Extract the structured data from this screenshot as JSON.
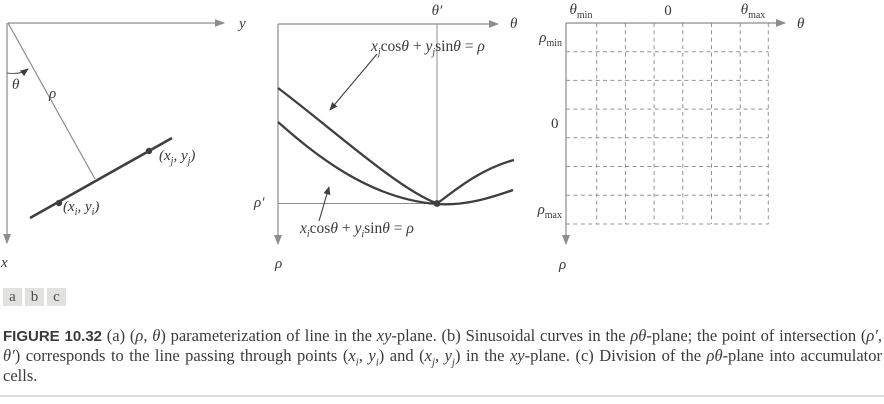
{
  "figure": {
    "tags": [
      "a",
      "b",
      "c"
    ],
    "caption_segments": [
      {
        "t": "FIGURE 10.32",
        "s": "b"
      },
      {
        "t": "  (a) (",
        "s": ""
      },
      {
        "t": "ρ",
        "s": "i"
      },
      {
        "t": ", ",
        "s": ""
      },
      {
        "t": "θ",
        "s": "i"
      },
      {
        "t": ") parameterization of line in the ",
        "s": ""
      },
      {
        "t": "xy",
        "s": "i"
      },
      {
        "t": "-plane. (b) Sinusoidal curves in the ",
        "s": ""
      },
      {
        "t": "ρθ",
        "s": "i"
      },
      {
        "t": "-plane; the point of intersection (",
        "s": ""
      },
      {
        "t": "ρ′",
        "s": "i"
      },
      {
        "t": ", ",
        "s": ""
      },
      {
        "t": "θ′",
        "s": "i"
      },
      {
        "t": ") corresponds to the line passing through points (",
        "s": ""
      },
      {
        "t": "x",
        "s": "i"
      },
      {
        "t": "i",
        "s": "sub"
      },
      {
        "t": ", ",
        "s": ""
      },
      {
        "t": "y",
        "s": "i"
      },
      {
        "t": "i",
        "s": "sub"
      },
      {
        "t": ") and (",
        "s": ""
      },
      {
        "t": "x",
        "s": "i"
      },
      {
        "t": "j",
        "s": "sub"
      },
      {
        "t": ", ",
        "s": ""
      },
      {
        "t": "y",
        "s": "i"
      },
      {
        "t": "j",
        "s": "sub"
      },
      {
        "t": ") in the ",
        "s": ""
      },
      {
        "t": "xy",
        "s": "i"
      },
      {
        "t": "-plane. (c) Division of the ",
        "s": ""
      },
      {
        "t": "ρθ",
        "s": "i"
      },
      {
        "t": "-plane into accumulator cells.",
        "s": ""
      }
    ]
  },
  "panel_a": {
    "y_axis_label": "y",
    "x_axis_label": "x",
    "theta_label": "θ",
    "rho_label": "ρ",
    "point_i_segments": [
      {
        "t": "(x",
        "s": "i"
      },
      {
        "t": "i",
        "s": "sub"
      },
      {
        "t": ", y",
        "s": "i"
      },
      {
        "t": "i",
        "s": "sub"
      },
      {
        "t": ")",
        "s": "i"
      }
    ],
    "point_j_segments": [
      {
        "t": "(x",
        "s": "i"
      },
      {
        "t": "j",
        "s": "sub"
      },
      {
        "t": ", y",
        "s": "i"
      },
      {
        "t": "j",
        "s": "sub"
      },
      {
        "t": ")",
        "s": "i"
      }
    ]
  },
  "panel_b": {
    "theta_axis_label": "θ",
    "rho_axis_label": "ρ",
    "theta_prime_label": "θ′",
    "rho_prime_label": "ρ′",
    "eq_j_segments": [
      {
        "t": "x",
        "s": "i"
      },
      {
        "t": "j",
        "s": "sub"
      },
      {
        "t": "cos",
        "s": ""
      },
      {
        "t": "θ",
        "s": "i"
      },
      {
        "t": " + ",
        "s": ""
      },
      {
        "t": "y",
        "s": "i"
      },
      {
        "t": "j",
        "s": "sub"
      },
      {
        "t": "sin",
        "s": ""
      },
      {
        "t": "θ",
        "s": "i"
      },
      {
        "t": " = ",
        "s": ""
      },
      {
        "t": "ρ",
        "s": "i"
      }
    ],
    "eq_i_segments": [
      {
        "t": "x",
        "s": "i"
      },
      {
        "t": "i",
        "s": "sub"
      },
      {
        "t": "cos",
        "s": ""
      },
      {
        "t": "θ",
        "s": "i"
      },
      {
        "t": " + ",
        "s": ""
      },
      {
        "t": "y",
        "s": "i"
      },
      {
        "t": "i",
        "s": "sub"
      },
      {
        "t": "sin",
        "s": ""
      },
      {
        "t": "θ",
        "s": "i"
      },
      {
        "t": " = ",
        "s": ""
      },
      {
        "t": "ρ",
        "s": "i"
      }
    ]
  },
  "panel_c": {
    "theta_axis_label": "θ",
    "rho_axis_label": "ρ",
    "zero_top_label": "0",
    "zero_left_label": "0",
    "theta_min_segments": [
      {
        "t": "θ",
        "s": "i"
      },
      {
        "t": "min",
        "s": "subr"
      }
    ],
    "theta_max_segments": [
      {
        "t": "θ",
        "s": "i"
      },
      {
        "t": "max",
        "s": "subr"
      }
    ],
    "rho_min_segments": [
      {
        "t": "ρ",
        "s": "i"
      },
      {
        "t": "min",
        "s": "subr"
      }
    ],
    "rho_max_segments": [
      {
        "t": "ρ",
        "s": "i"
      },
      {
        "t": "max",
        "s": "subr"
      }
    ],
    "grid": {
      "columns": 7,
      "rows": 7
    }
  },
  "colors": {
    "axis_gray": "#8c8c8c",
    "dark_stroke": "#3f3f3f",
    "text": "#3a3a3a",
    "tag_box_bg": "#e1e1df",
    "bottom_rule": "#dcdcda"
  }
}
